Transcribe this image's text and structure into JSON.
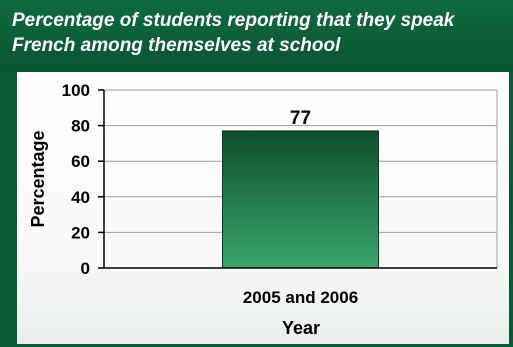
{
  "title": "Percentage of students reporting that they speak French among themselves at school",
  "chart_data": {
    "type": "bar",
    "title": "Percentage of students reporting that they speak French among themselves at school",
    "categories": [
      "2005 and 2006"
    ],
    "values": [
      77
    ],
    "data_labels": [
      "77"
    ],
    "xlabel": "Year",
    "ylabel": "Percentage",
    "ylim": [
      0,
      100
    ],
    "yticks": [
      "0",
      "20",
      "40",
      "60",
      "80",
      "100"
    ],
    "grid": true,
    "colors": {
      "bar_top": "#0f4f2e",
      "bar_bottom": "#3aa66c",
      "frame": "#0b5a36"
    }
  }
}
